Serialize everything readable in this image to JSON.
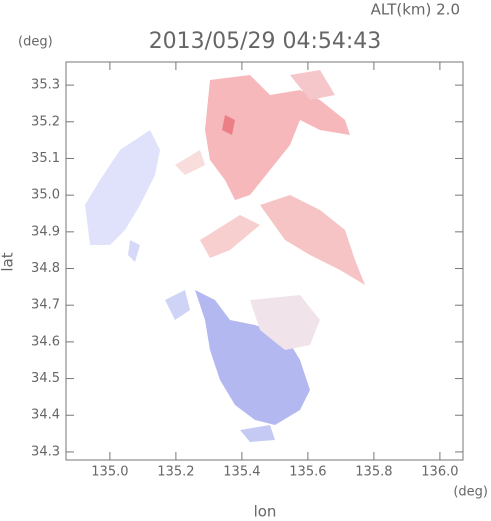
{
  "chart_data": {
    "type": "map",
    "title": "2013/05/29 04:54:43",
    "subtitle": "ALT(km) 2.0",
    "x_label": "lon",
    "y_label": "lat",
    "x_unit": "(deg)",
    "y_unit": "(deg)",
    "xlim": [
      134.867,
      136.07
    ],
    "ylim": [
      34.278,
      35.363
    ],
    "xticks": [
      {
        "value": 135.0,
        "label": "135.0"
      },
      135.2,
      135.4,
      135.6,
      135.8,
      {
        "value": 136.0,
        "label": "136.0"
      }
    ],
    "yticks": [
      34.3,
      34.4,
      34.5,
      34.6,
      34.7,
      34.8,
      34.9,
      {
        "value": 35.0,
        "label": "35.0"
      },
      35.1,
      35.2,
      35.3
    ]
  }
}
